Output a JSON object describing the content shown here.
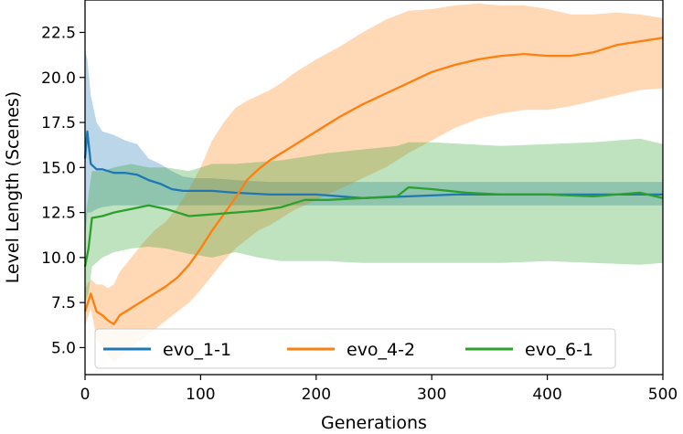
{
  "chart_data": {
    "type": "line",
    "title": "",
    "xlabel": "Generations",
    "ylabel": "Level Length (Scenes)",
    "xlim": [
      0,
      500
    ],
    "ylim": [
      3.5,
      24.3
    ],
    "xticks": [
      0,
      100,
      200,
      300,
      400,
      500
    ],
    "xtick_labels": [
      "0",
      "100",
      "200",
      "300",
      "400",
      "500"
    ],
    "yticks": [
      5.0,
      7.5,
      10.0,
      12.5,
      15.0,
      17.5,
      20.0,
      22.5
    ],
    "ytick_labels": [
      "5.0",
      "7.5",
      "10.0",
      "12.5",
      "15.0",
      "17.5",
      "20.0",
      "22.5"
    ],
    "grid": false,
    "legend_position": "lower-center",
    "series": [
      {
        "name": "evo_1-1",
        "color": "#1f77b4",
        "x": [
          0,
          2,
          5,
          10,
          15,
          25,
          35,
          45,
          55,
          65,
          75,
          85,
          95,
          110,
          130,
          160,
          200,
          240,
          280,
          320,
          360,
          400,
          440,
          480,
          500
        ],
        "mean": [
          15.5,
          17.0,
          15.2,
          14.9,
          14.9,
          14.7,
          14.7,
          14.6,
          14.3,
          14.1,
          13.8,
          13.7,
          13.7,
          13.7,
          13.6,
          13.5,
          13.5,
          13.3,
          13.4,
          13.5,
          13.5,
          13.5,
          13.5,
          13.5,
          13.5
        ],
        "lower": [
          11.0,
          12.5,
          12.5,
          12.7,
          12.8,
          12.9,
          12.9,
          12.9,
          12.9,
          12.9,
          12.9,
          12.9,
          12.9,
          12.9,
          12.9,
          12.9,
          12.9,
          12.9,
          12.9,
          12.9,
          12.9,
          12.9,
          12.9,
          12.9,
          12.9
        ],
        "upper": [
          21.5,
          21.0,
          19.0,
          17.5,
          17.0,
          16.8,
          16.5,
          16.3,
          15.5,
          15.2,
          14.8,
          14.5,
          14.4,
          14.4,
          14.3,
          14.2,
          14.2,
          14.2,
          14.2,
          14.2,
          14.2,
          14.2,
          14.2,
          14.2,
          14.2
        ]
      },
      {
        "name": "evo_4-2",
        "color": "#ff7f0e",
        "x": [
          0,
          5,
          10,
          15,
          20,
          25,
          30,
          40,
          50,
          60,
          70,
          80,
          90,
          100,
          110,
          120,
          130,
          140,
          150,
          160,
          170,
          180,
          200,
          220,
          240,
          260,
          280,
          300,
          320,
          340,
          360,
          380,
          400,
          420,
          440,
          460,
          480,
          500
        ],
        "mean": [
          7.0,
          8.0,
          7.0,
          6.8,
          6.5,
          6.3,
          6.8,
          7.2,
          7.6,
          8.0,
          8.4,
          8.9,
          9.6,
          10.5,
          11.5,
          12.4,
          13.3,
          14.3,
          14.9,
          15.4,
          15.8,
          16.2,
          17.0,
          17.8,
          18.5,
          19.1,
          19.7,
          20.3,
          20.7,
          21.0,
          21.2,
          21.3,
          21.2,
          21.2,
          21.4,
          21.8,
          22.0,
          22.2
        ],
        "lower": [
          6.2,
          7.2,
          5.5,
          5.0,
          4.5,
          4.2,
          4.5,
          5.0,
          5.5,
          6.0,
          6.5,
          7.0,
          7.5,
          8.2,
          9.0,
          9.8,
          10.5,
          11.0,
          11.5,
          11.8,
          12.2,
          12.6,
          13.2,
          13.8,
          14.4,
          15.0,
          15.8,
          16.5,
          17.2,
          17.7,
          18.0,
          18.2,
          18.2,
          18.4,
          18.7,
          19.0,
          19.3,
          19.4
        ],
        "upper": [
          8.3,
          8.8,
          8.5,
          8.5,
          8.3,
          8.5,
          9.2,
          10.0,
          10.8,
          11.5,
          12.0,
          12.8,
          13.8,
          15.0,
          16.5,
          17.5,
          18.3,
          18.7,
          19.0,
          19.3,
          19.7,
          20.2,
          21.0,
          21.7,
          22.5,
          23.2,
          23.7,
          23.8,
          24.0,
          24.1,
          24.0,
          24.0,
          23.8,
          23.5,
          23.5,
          23.6,
          23.5,
          23.3
        ]
      },
      {
        "name": "evo_6-1",
        "color": "#2ca02c",
        "x": [
          0,
          3,
          6,
          15,
          25,
          40,
          55,
          70,
          90,
          110,
          130,
          150,
          170,
          190,
          210,
          240,
          270,
          280,
          300,
          330,
          360,
          400,
          440,
          480,
          500
        ],
        "mean": [
          9.5,
          10.5,
          12.2,
          12.3,
          12.5,
          12.7,
          12.9,
          12.7,
          12.3,
          12.4,
          12.5,
          12.6,
          12.8,
          13.2,
          13.2,
          13.3,
          13.4,
          13.9,
          13.8,
          13.6,
          13.5,
          13.5,
          13.4,
          13.6,
          13.3
        ],
        "lower": [
          7.5,
          8.0,
          9.5,
          10.0,
          10.3,
          10.5,
          10.6,
          10.5,
          10.2,
          10.0,
          10.3,
          10.0,
          9.8,
          9.8,
          9.8,
          9.7,
          9.7,
          9.7,
          9.7,
          9.7,
          9.7,
          9.8,
          9.7,
          9.6,
          9.7
        ],
        "upper": [
          12.0,
          13.5,
          14.8,
          14.8,
          15.0,
          15.2,
          15.0,
          15.0,
          14.8,
          15.2,
          15.2,
          15.3,
          15.4,
          15.6,
          15.8,
          16.0,
          16.2,
          16.4,
          16.4,
          16.3,
          16.2,
          16.3,
          16.4,
          16.6,
          16.3
        ]
      }
    ]
  }
}
